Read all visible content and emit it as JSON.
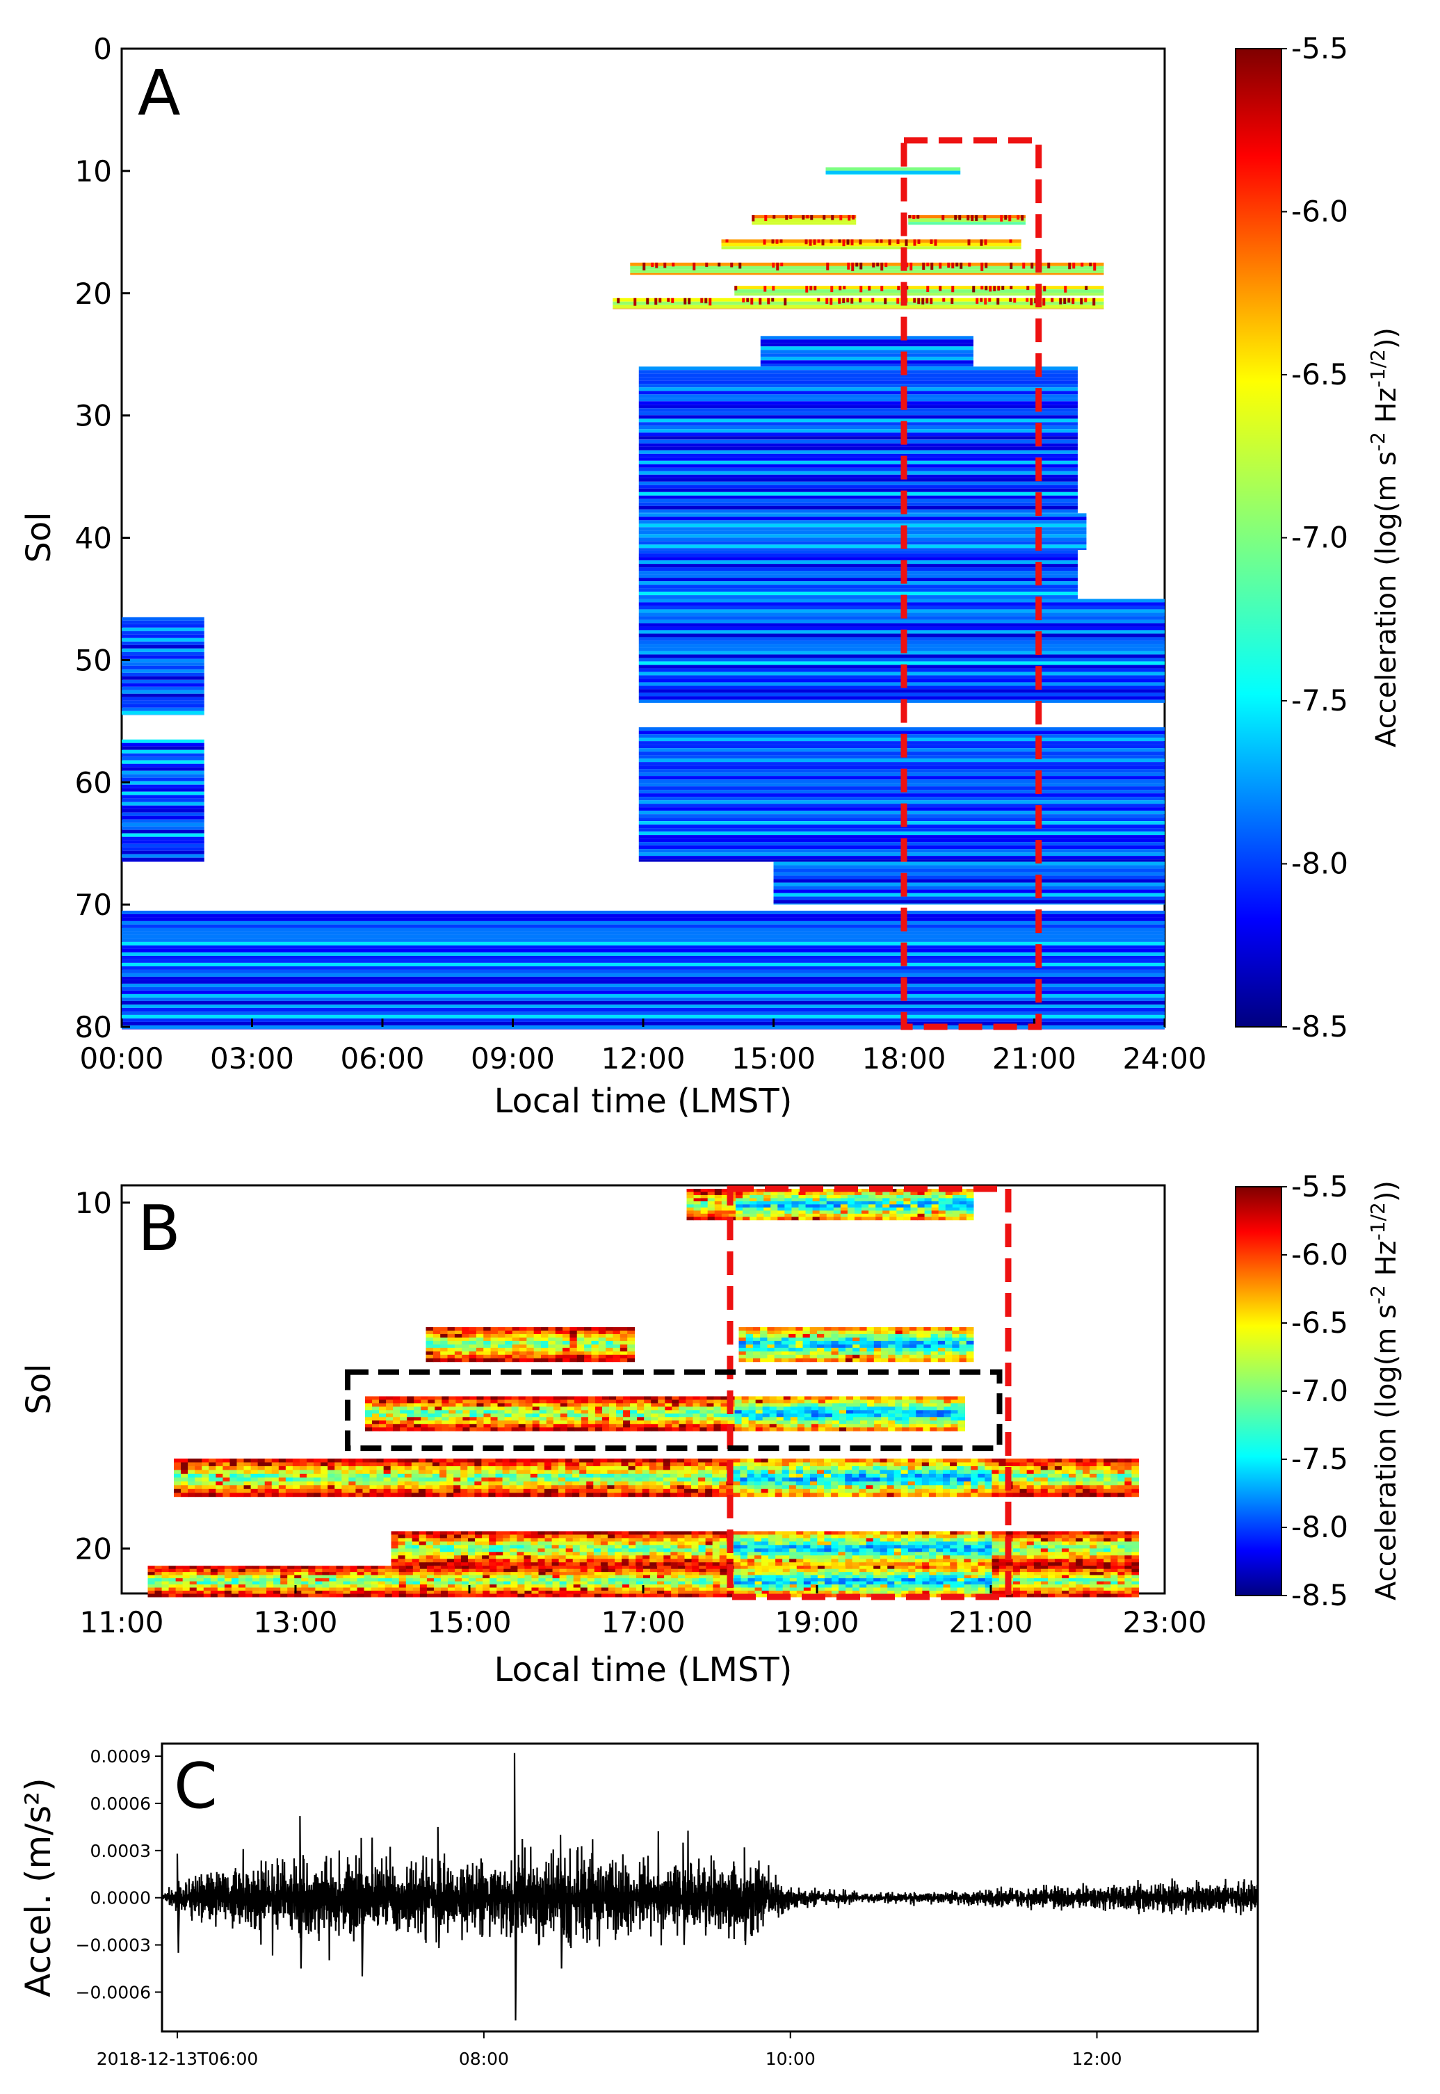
{
  "figure": {
    "panel_a_label": "A",
    "panel_b_label": "B",
    "panel_c_label": "C"
  },
  "chart_data": [
    {
      "id": "A",
      "type": "heatmap",
      "title": "",
      "xlabel": "Local time (LMST)",
      "ylabel": "Sol",
      "xlim": [
        0,
        24
      ],
      "ylim": [
        0,
        80
      ],
      "x_ticks": [
        "00:00",
        "03:00",
        "06:00",
        "09:00",
        "12:00",
        "15:00",
        "18:00",
        "21:00",
        "24:00"
      ],
      "y_ticks": [
        "0",
        "10",
        "20",
        "30",
        "40",
        "50",
        "60",
        "70",
        "80"
      ],
      "colorbar": {
        "label": "Acceleration (log(m s-2 Hz-1/2))",
        "range": [
          -8.5,
          -5.5
        ],
        "ticks": [
          "-5.5",
          "-6.0",
          "-6.5",
          "-7.0",
          "-7.5",
          "-8.0",
          "-8.5"
        ]
      },
      "highlight_box": {
        "x_range": [
          18.0,
          21.1
        ],
        "sol_range": [
          7.5,
          80
        ],
        "color": "#ee1111",
        "style": "dashed"
      },
      "coverage_bands": [
        {
          "sol_start": 9.7,
          "sol_end": 10.3,
          "hours": [
            [
              16.2,
              19.3
            ]
          ],
          "level": "mid"
        },
        {
          "sol_start": 13.6,
          "sol_end": 14.4,
          "hours": [
            [
              14.5,
              16.9
            ],
            [
              18.1,
              20.8
            ]
          ],
          "level": "high"
        },
        {
          "sol_start": 15.6,
          "sol_end": 16.4,
          "hours": [
            [
              13.8,
              20.7
            ]
          ],
          "level": "high"
        },
        {
          "sol_start": 17.5,
          "sol_end": 18.5,
          "hours": [
            [
              11.7,
              22.6
            ]
          ],
          "level": "high"
        },
        {
          "sol_start": 19.4,
          "sol_end": 20.2,
          "hours": [
            [
              14.1,
              22.6
            ]
          ],
          "level": "high"
        },
        {
          "sol_start": 20.4,
          "sol_end": 21.3,
          "hours": [
            [
              11.3,
              22.6
            ]
          ],
          "level": "high"
        },
        {
          "sol_start": 23.5,
          "sol_end": 26,
          "hours": [
            [
              14.7,
              19.6
            ]
          ],
          "level": "low"
        },
        {
          "sol_start": 26,
          "sol_end": 32,
          "hours": [
            [
              11.9,
              22.0
            ]
          ],
          "level": "low"
        },
        {
          "sol_start": 32,
          "sol_end": 38,
          "hours": [
            [
              11.9,
              22.0
            ]
          ],
          "level": "low"
        },
        {
          "sol_start": 38,
          "sol_end": 41,
          "hours": [
            [
              11.9,
              22.2
            ]
          ],
          "level": "low"
        },
        {
          "sol_start": 41,
          "sol_end": 45,
          "hours": [
            [
              11.9,
              22.0
            ]
          ],
          "level": "low"
        },
        {
          "sol_start": 45,
          "sol_end": 53.5,
          "hours": [
            [
              11.9,
              24.0
            ]
          ],
          "level": "low"
        },
        {
          "sol_start": 46.5,
          "sol_end": 54.5,
          "hours": [
            [
              0,
              1.9
            ]
          ],
          "level": "low"
        },
        {
          "sol_start": 55.5,
          "sol_end": 66.5,
          "hours": [
            [
              11.9,
              24.0
            ]
          ],
          "level": "low"
        },
        {
          "sol_start": 56.5,
          "sol_end": 66.5,
          "hours": [
            [
              0,
              1.9
            ]
          ],
          "level": "low"
        },
        {
          "sol_start": 66.5,
          "sol_end": 70,
          "hours": [
            [
              15.0,
              24.0
            ]
          ],
          "level": "low"
        },
        {
          "sol_start": 70.5,
          "sol_end": 80.2,
          "hours": [
            [
              0,
              24.0
            ]
          ],
          "level": "low"
        }
      ]
    },
    {
      "id": "B",
      "type": "heatmap",
      "title": "",
      "xlabel": "Local time (LMST)",
      "ylabel": "Sol",
      "xlim": [
        11,
        23
      ],
      "ylim": [
        9.5,
        21.3
      ],
      "x_ticks": [
        "11:00",
        "13:00",
        "15:00",
        "17:00",
        "19:00",
        "21:00",
        "23:00"
      ],
      "y_ticks": [
        "10",
        "20"
      ],
      "colorbar": {
        "label": "Acceleration (log(m s-2 Hz-1/2))",
        "range": [
          -8.5,
          -5.5
        ],
        "ticks": [
          "-5.5",
          "-6.0",
          "-6.5",
          "-7.0",
          "-7.5",
          "-8.0",
          "-8.5"
        ]
      },
      "highlight_box_red": {
        "x_range": [
          18.0,
          21.2
        ],
        "sol_range": [
          9.6,
          21.4
        ],
        "color": "#ee1111",
        "style": "dashed"
      },
      "highlight_box_black": {
        "x_range": [
          13.6,
          21.1
        ],
        "sol_range": [
          14.9,
          17.1
        ],
        "color": "#000000",
        "style": "dashed"
      },
      "bands": [
        {
          "sol_start": 9.6,
          "sol_end": 10.5,
          "hours": [
            [
              17.5,
              20.8
            ]
          ]
        },
        {
          "sol_start": 13.6,
          "sol_end": 14.6,
          "hours": [
            [
              14.5,
              16.9
            ],
            [
              18.1,
              20.8
            ]
          ]
        },
        {
          "sol_start": 15.6,
          "sol_end": 16.6,
          "hours": [
            [
              13.8,
              20.7
            ]
          ]
        },
        {
          "sol_start": 17.4,
          "sol_end": 18.5,
          "hours": [
            [
              11.6,
              22.7
            ]
          ]
        },
        {
          "sol_start": 19.5,
          "sol_end": 20.5,
          "hours": [
            [
              14.1,
              22.7
            ]
          ]
        },
        {
          "sol_start": 20.5,
          "sol_end": 21.4,
          "hours": [
            [
              11.3,
              22.7
            ]
          ]
        }
      ]
    },
    {
      "id": "C",
      "type": "line",
      "title": "",
      "xlabel": "",
      "ylabel": "Accel. (m/s²)",
      "ylim": [
        -0.00085,
        0.00098
      ],
      "x_ticks": [
        "2018-12-13T06:00",
        "08:00",
        "10:00",
        "12:00"
      ],
      "x_tick_hours": [
        6,
        8,
        10,
        12
      ],
      "x_range_hours": [
        5.9,
        13.05
      ],
      "y_ticks": [
        "0.0009",
        "0.0006",
        "0.0003",
        "0.0000",
        "−0.0003",
        "−0.0006"
      ],
      "y_tick_values": [
        0.0009,
        0.0006,
        0.0003,
        0.0,
        -0.0003,
        -0.0006
      ],
      "envelope": [
        {
          "hour": 5.9,
          "amp": 2e-05
        },
        {
          "hour": 6.0,
          "amp": 0.0001
        },
        {
          "hour": 6.2,
          "amp": 0.0002
        },
        {
          "hour": 6.5,
          "amp": 0.00025
        },
        {
          "hour": 6.8,
          "amp": 0.0003
        },
        {
          "hour": 7.0,
          "amp": 0.00035
        },
        {
          "hour": 7.3,
          "amp": 0.0003
        },
        {
          "hour": 7.6,
          "amp": 0.0003
        },
        {
          "hour": 7.9,
          "amp": 0.00028
        },
        {
          "hour": 8.2,
          "amp": 0.00032
        },
        {
          "hour": 8.5,
          "amp": 0.00035
        },
        {
          "hour": 9.0,
          "amp": 0.0003
        },
        {
          "hour": 9.5,
          "amp": 0.0003
        },
        {
          "hour": 9.8,
          "amp": 0.00028
        },
        {
          "hour": 10.0,
          "amp": 8e-05
        },
        {
          "hour": 10.5,
          "amp": 4e-05
        },
        {
          "hour": 11.0,
          "amp": 5e-05
        },
        {
          "hour": 11.5,
          "amp": 9e-05
        },
        {
          "hour": 12.0,
          "amp": 0.0001
        },
        {
          "hour": 12.5,
          "amp": 0.00012
        },
        {
          "hour": 13.05,
          "amp": 0.00012
        }
      ],
      "spikes": [
        {
          "hour": 6.0,
          "max": 0.00028,
          "min": -0.00035
        },
        {
          "hour": 6.8,
          "max": 0.00052,
          "min": -0.00045
        },
        {
          "hour": 7.2,
          "max": 0.00038,
          "min": -0.0005
        },
        {
          "hour": 7.7,
          "max": 0.00045,
          "min": -0.00032
        },
        {
          "hour": 8.2,
          "max": 0.00092,
          "min": -0.00078
        },
        {
          "hour": 8.5,
          "max": 0.0004,
          "min": -0.00045
        },
        {
          "hour": 9.3,
          "max": 0.00035,
          "min": -0.0003
        },
        {
          "hour": 9.7,
          "max": 0.00032,
          "min": -0.0003
        }
      ]
    }
  ]
}
